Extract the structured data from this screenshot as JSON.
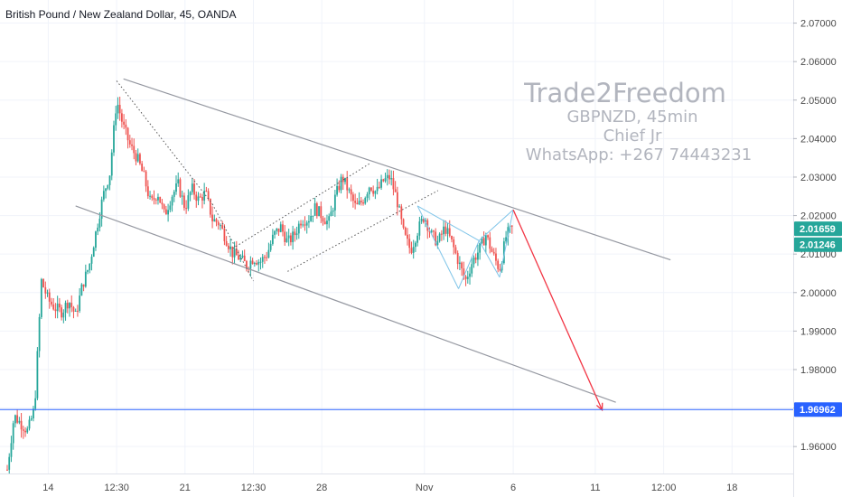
{
  "header": {
    "title": "British Pound / New Zealand Dollar, 45, OANDA"
  },
  "watermark": {
    "title": "Trade2Freedom",
    "lines": [
      "GBPNZD, 45min",
      "Chief Jr",
      "WhatsApp: +267 74443231"
    ]
  },
  "colors": {
    "up": "#26a69a",
    "down": "#ef5350",
    "channel": "#9598a1",
    "target_arrow": "#f23645",
    "support": "#2962ff",
    "pattern": "#7ec4e8",
    "badge_green": "#26a69a",
    "badge_blue": "#2962ff"
  },
  "price_badges": [
    {
      "label": "2.01659",
      "value": 2.01659,
      "color": "#26a69a"
    },
    {
      "label": "2.01246",
      "value": 2.01246,
      "color": "#26a69a"
    },
    {
      "label": "1.96962",
      "value": 1.96962,
      "color": "#2962ff"
    }
  ],
  "chart_data": {
    "type": "candlestick",
    "symbol": "GBPNZD",
    "timeframe": "45",
    "ylim": [
      1.953,
      2.076
    ],
    "y_ticks": [
      "2.07000",
      "2.06000",
      "2.05000",
      "2.04000",
      "2.03000",
      "2.02000",
      "2.01000",
      "2.00000",
      "1.99000",
      "1.98000",
      "1.97000",
      "1.96000"
    ],
    "x_ticks": [
      "14",
      "12:30",
      "21",
      "12:30",
      "28",
      "Nov",
      "6",
      "11",
      "12:00",
      "18"
    ],
    "x_tick_index": [
      6,
      16,
      26,
      36,
      46,
      61,
      74,
      86,
      96,
      106
    ],
    "bars_visible": 116,
    "close_path": [
      [
        0,
        1.954
      ],
      [
        1,
        1.968
      ],
      [
        2,
        1.966
      ],
      [
        3,
        1.964
      ],
      [
        4,
        1.97
      ],
      [
        5,
        2.003
      ],
      [
        6,
        1.998
      ],
      [
        7,
        1.996
      ],
      [
        8,
        1.995
      ],
      [
        9,
        1.998
      ],
      [
        10,
        1.994
      ],
      [
        11,
        2.002
      ],
      [
        12,
        2.007
      ],
      [
        13,
        2.016
      ],
      [
        14,
        2.025
      ],
      [
        15,
        2.031
      ],
      [
        16,
        2.05
      ],
      [
        17,
        2.043
      ],
      [
        18,
        2.038
      ],
      [
        19,
        2.035
      ],
      [
        20,
        2.03
      ],
      [
        21,
        2.023
      ],
      [
        22,
        2.026
      ],
      [
        23,
        2.02
      ],
      [
        24,
        2.025
      ],
      [
        25,
        2.028
      ],
      [
        26,
        2.022
      ],
      [
        27,
        2.027
      ],
      [
        28,
        2.024
      ],
      [
        29,
        2.026
      ],
      [
        30,
        2.019
      ],
      [
        31,
        2.018
      ],
      [
        32,
        2.014
      ],
      [
        33,
        2.01
      ],
      [
        34,
        2.009
      ],
      [
        35,
        2.007
      ],
      [
        36,
        2.009
      ],
      [
        37,
        2.008
      ],
      [
        38,
        2.01
      ],
      [
        39,
        2.015
      ],
      [
        40,
        2.017
      ],
      [
        41,
        2.013
      ],
      [
        42,
        2.015
      ],
      [
        43,
        2.019
      ],
      [
        44,
        2.019
      ],
      [
        45,
        2.022
      ],
      [
        46,
        2.02
      ],
      [
        47,
        2.018
      ],
      [
        48,
        2.025
      ],
      [
        49,
        2.03
      ],
      [
        50,
        2.026
      ],
      [
        51,
        2.022
      ],
      [
        52,
        2.024
      ],
      [
        53,
        2.028
      ],
      [
        54,
        2.026
      ],
      [
        55,
        2.029
      ],
      [
        56,
        2.03
      ],
      [
        57,
        2.024
      ],
      [
        58,
        2.015
      ],
      [
        59,
        2.011
      ],
      [
        60,
        2.016
      ],
      [
        61,
        2.02
      ],
      [
        62,
        2.015
      ],
      [
        63,
        2.013
      ],
      [
        64,
        2.017
      ],
      [
        65,
        2.013
      ],
      [
        66,
        2.008
      ],
      [
        67,
        2.003
      ],
      [
        68,
        2.008
      ],
      [
        69,
        2.011
      ],
      [
        70,
        2.015
      ],
      [
        71,
        2.01
      ],
      [
        72,
        2.006
      ],
      [
        73,
        2.015
      ],
      [
        74,
        2.017
      ]
    ],
    "drawings": {
      "upper_channel": [
        [
          17,
          2.0555
        ],
        [
          97,
          2.0085
        ]
      ],
      "lower_channel": [
        [
          10,
          2.0225
        ],
        [
          89,
          1.9715
        ]
      ],
      "inner_channel_upper": [
        [
          33,
          2.0115
        ],
        [
          53,
          2.0335
        ]
      ],
      "inner_channel_lower": [
        [
          41,
          2.0055
        ],
        [
          63,
          2.0265
        ]
      ],
      "zigzag_dotted": [
        [
          16,
          2.055
        ],
        [
          30,
          2.023
        ],
        [
          36,
          2.003
        ]
      ],
      "harmonic_pattern": [
        [
          60,
          2.0225
        ],
        [
          66,
          2.001
        ],
        [
          69,
          2.0135
        ],
        [
          72,
          2.004
        ],
        [
          74,
          2.0215
        ]
      ],
      "target_arrow": [
        [
          74,
          2.0215
        ],
        [
          87,
          1.9695
        ]
      ],
      "support_level": 1.96962
    }
  }
}
